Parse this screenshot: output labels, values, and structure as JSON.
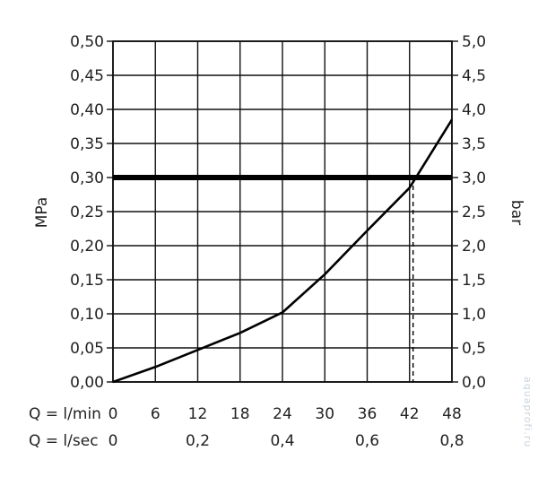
{
  "chart_data": {
    "type": "line",
    "title": "",
    "left_axis": {
      "label": "MPa",
      "ticks": [
        "0,00",
        "0,05",
        "0,10",
        "0,15",
        "0,20",
        "0,25",
        "0,30",
        "0,35",
        "0,40",
        "0,45",
        "0,50"
      ],
      "range": [
        0,
        0.5
      ]
    },
    "right_axis": {
      "label": "bar",
      "ticks": [
        "0,0",
        "0,5",
        "1,0",
        "1,5",
        "2,0",
        "2,5",
        "3,0",
        "3,5",
        "4,0",
        "4,5",
        "5,0"
      ],
      "range": [
        0,
        5
      ]
    },
    "x_axis_lmin": {
      "label": "Q = l/min",
      "ticks": [
        "0",
        "6",
        "12",
        "18",
        "24",
        "30",
        "36",
        "42",
        "48"
      ],
      "range": [
        0,
        48
      ]
    },
    "x_axis_lsec": {
      "label": "Q = l/sec",
      "ticks": [
        "0",
        "0,2",
        "0,4",
        "0,6",
        "0,8"
      ],
      "positions_lmin": [
        0,
        12,
        24,
        36,
        48
      ]
    },
    "grid": true,
    "series": [
      {
        "x": [
          0,
          6,
          12,
          18,
          24,
          30,
          36,
          42,
          48
        ],
        "y": [
          0,
          0.022,
          0.047,
          0.072,
          0.102,
          0.158,
          0.222,
          0.285,
          0.385
        ]
      }
    ],
    "reference_line_y": 0.3,
    "intersection_x": 42.5
  },
  "watermark": "aquaprofi.ru"
}
